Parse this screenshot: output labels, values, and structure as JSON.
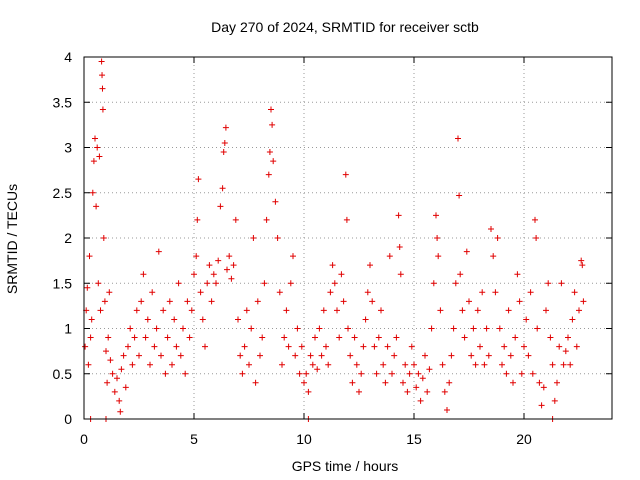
{
  "chart_data": {
    "type": "scatter",
    "title": "Day 270 of 2024, SRMTID for receiver sctb",
    "xlabel": "GPS time / hours",
    "ylabel": "SRMTID / TECUs",
    "xlim": [
      0,
      24
    ],
    "ylim": [
      0,
      4
    ],
    "x_ticks": [
      0,
      5,
      10,
      15,
      20
    ],
    "y_ticks": [
      0,
      0.5,
      1,
      1.5,
      2,
      2.5,
      3,
      3.5,
      4
    ],
    "x_tick_labels": [
      "0",
      "5",
      "10",
      "15",
      "20"
    ],
    "y_tick_labels": [
      "0",
      "0.5",
      "1",
      "1.5",
      "2",
      "2.5",
      "3",
      "3.5",
      "4"
    ],
    "grid": true,
    "marker": "+",
    "color": "#e00000",
    "series": [
      {
        "name": "SRMTID",
        "points": [
          [
            0.05,
            0.8
          ],
          [
            0.1,
            1.2
          ],
          [
            0.15,
            1.45
          ],
          [
            0.2,
            0.6
          ],
          [
            0.25,
            1.8
          ],
          [
            0.3,
            0.9
          ],
          [
            0.35,
            1.1
          ],
          [
            0.4,
            2.5
          ],
          [
            0.45,
            2.85
          ],
          [
            0.5,
            3.1
          ],
          [
            0.55,
            2.35
          ],
          [
            0.6,
            3.0
          ],
          [
            0.65,
            1.5
          ],
          [
            0.7,
            2.9
          ],
          [
            0.75,
            1.2
          ],
          [
            0.8,
            3.95
          ],
          [
            0.82,
            3.8
          ],
          [
            0.84,
            3.65
          ],
          [
            0.86,
            3.42
          ],
          [
            0.9,
            2.0
          ],
          [
            0.95,
            1.3
          ],
          [
            1.0,
            0.75
          ],
          [
            1.05,
            0.4
          ],
          [
            1.1,
            0.9
          ],
          [
            1.15,
            1.4
          ],
          [
            1.2,
            0.65
          ],
          [
            1.3,
            0.5
          ],
          [
            1.4,
            0.3
          ],
          [
            1.5,
            0.45
          ],
          [
            1.6,
            0.2
          ],
          [
            1.65,
            0.08
          ],
          [
            1.7,
            0.55
          ],
          [
            1.8,
            0.7
          ],
          [
            1.9,
            0.35
          ],
          [
            2.0,
            0.8
          ],
          [
            2.1,
            1.0
          ],
          [
            2.2,
            0.6
          ],
          [
            2.3,
            0.9
          ],
          [
            2.4,
            1.2
          ],
          [
            2.5,
            0.7
          ],
          [
            2.6,
            1.3
          ],
          [
            2.7,
            1.6
          ],
          [
            2.8,
            0.9
          ],
          [
            2.9,
            1.1
          ],
          [
            3.0,
            0.6
          ],
          [
            3.1,
            1.4
          ],
          [
            3.2,
            0.8
          ],
          [
            3.3,
            1.0
          ],
          [
            3.4,
            1.85
          ],
          [
            3.5,
            0.7
          ],
          [
            3.6,
            1.2
          ],
          [
            3.7,
            0.5
          ],
          [
            3.8,
            0.9
          ],
          [
            3.9,
            1.3
          ],
          [
            4.0,
            0.6
          ],
          [
            4.1,
            1.1
          ],
          [
            4.2,
            0.8
          ],
          [
            4.3,
            1.5
          ],
          [
            4.4,
            0.7
          ],
          [
            4.5,
            1.0
          ],
          [
            4.6,
            0.5
          ],
          [
            4.7,
            1.3
          ],
          [
            4.8,
            0.9
          ],
          [
            4.9,
            1.2
          ],
          [
            5.0,
            1.6
          ],
          [
            5.1,
            1.8
          ],
          [
            5.15,
            2.2
          ],
          [
            5.2,
            2.65
          ],
          [
            5.3,
            1.4
          ],
          [
            5.4,
            1.1
          ],
          [
            5.5,
            0.8
          ],
          [
            5.6,
            1.5
          ],
          [
            5.7,
            1.7
          ],
          [
            5.8,
            1.3
          ],
          [
            5.9,
            1.6
          ],
          [
            6.0,
            1.5
          ],
          [
            6.1,
            1.75
          ],
          [
            6.2,
            2.35
          ],
          [
            6.3,
            2.55
          ],
          [
            6.35,
            2.95
          ],
          [
            6.4,
            3.05
          ],
          [
            6.45,
            3.22
          ],
          [
            6.5,
            1.65
          ],
          [
            6.6,
            1.8
          ],
          [
            6.7,
            1.55
          ],
          [
            6.8,
            1.7
          ],
          [
            6.9,
            2.2
          ],
          [
            7.0,
            1.1
          ],
          [
            7.1,
            0.7
          ],
          [
            7.2,
            0.5
          ],
          [
            7.3,
            0.8
          ],
          [
            7.4,
            1.2
          ],
          [
            7.5,
            0.6
          ],
          [
            7.6,
            1.0
          ],
          [
            7.7,
            2.0
          ],
          [
            7.8,
            0.4
          ],
          [
            7.9,
            1.3
          ],
          [
            8.0,
            0.7
          ],
          [
            8.1,
            0.9
          ],
          [
            8.2,
            1.5
          ],
          [
            8.3,
            2.2
          ],
          [
            8.4,
            2.7
          ],
          [
            8.45,
            2.95
          ],
          [
            8.5,
            3.42
          ],
          [
            8.55,
            3.25
          ],
          [
            8.6,
            2.85
          ],
          [
            8.7,
            2.4
          ],
          [
            8.8,
            2.0
          ],
          [
            8.9,
            1.4
          ],
          [
            9.0,
            0.6
          ],
          [
            9.1,
            0.9
          ],
          [
            9.2,
            1.2
          ],
          [
            9.3,
            0.8
          ],
          [
            9.4,
            1.5
          ],
          [
            9.5,
            1.8
          ],
          [
            9.6,
            0.7
          ],
          [
            9.7,
            1.0
          ],
          [
            9.8,
            0.5
          ],
          [
            9.9,
            0.8
          ],
          [
            10.0,
            0.4
          ],
          [
            10.1,
            0.5
          ],
          [
            10.2,
            0.3
          ],
          [
            10.3,
            0.7
          ],
          [
            10.4,
            0.6
          ],
          [
            10.5,
            0.9
          ],
          [
            10.6,
            0.55
          ],
          [
            10.7,
            1.0
          ],
          [
            10.8,
            0.7
          ],
          [
            10.9,
            1.2
          ],
          [
            11.0,
            0.8
          ],
          [
            11.1,
            0.6
          ],
          [
            11.2,
            1.4
          ],
          [
            11.3,
            1.7
          ],
          [
            11.4,
            1.5
          ],
          [
            11.5,
            1.2
          ],
          [
            11.6,
            0.9
          ],
          [
            11.7,
            1.6
          ],
          [
            11.8,
            1.3
          ],
          [
            11.9,
            2.7
          ],
          [
            11.95,
            2.2
          ],
          [
            12.0,
            1.0
          ],
          [
            12.1,
            0.7
          ],
          [
            12.2,
            0.4
          ],
          [
            12.3,
            0.9
          ],
          [
            12.4,
            0.6
          ],
          [
            12.5,
            0.3
          ],
          [
            12.6,
            0.5
          ],
          [
            12.7,
            0.8
          ],
          [
            12.8,
            1.1
          ],
          [
            12.9,
            1.4
          ],
          [
            13.0,
            1.7
          ],
          [
            13.1,
            1.3
          ],
          [
            13.2,
            0.8
          ],
          [
            13.3,
            0.5
          ],
          [
            13.4,
            0.9
          ],
          [
            13.5,
            1.2
          ],
          [
            13.6,
            0.6
          ],
          [
            13.7,
            0.4
          ],
          [
            13.8,
            0.8
          ],
          [
            13.9,
            1.8
          ],
          [
            14.0,
            0.5
          ],
          [
            14.1,
            0.7
          ],
          [
            14.2,
            0.9
          ],
          [
            14.3,
            2.25
          ],
          [
            14.35,
            1.9
          ],
          [
            14.4,
            1.6
          ],
          [
            14.5,
            0.4
          ],
          [
            14.6,
            0.6
          ],
          [
            14.7,
            0.3
          ],
          [
            14.8,
            0.5
          ],
          [
            14.9,
            0.8
          ],
          [
            15.0,
            0.6
          ],
          [
            15.1,
            0.35
          ],
          [
            15.2,
            0.5
          ],
          [
            15.3,
            0.2
          ],
          [
            15.4,
            0.45
          ],
          [
            15.5,
            0.7
          ],
          [
            15.6,
            0.3
          ],
          [
            15.7,
            0.55
          ],
          [
            15.8,
            1.0
          ],
          [
            15.9,
            1.5
          ],
          [
            16.0,
            2.25
          ],
          [
            16.05,
            2.0
          ],
          [
            16.1,
            1.8
          ],
          [
            16.2,
            1.2
          ],
          [
            16.3,
            0.6
          ],
          [
            16.4,
            0.3
          ],
          [
            16.5,
            0.1
          ],
          [
            16.6,
            0.4
          ],
          [
            16.7,
            0.7
          ],
          [
            16.8,
            1.0
          ],
          [
            16.9,
            1.5
          ],
          [
            17.0,
            3.1
          ],
          [
            17.05,
            2.47
          ],
          [
            17.1,
            1.6
          ],
          [
            17.2,
            1.2
          ],
          [
            17.3,
            0.9
          ],
          [
            17.4,
            1.85
          ],
          [
            17.5,
            1.3
          ],
          [
            17.6,
            0.7
          ],
          [
            17.7,
            1.0
          ],
          [
            17.8,
            0.6
          ],
          [
            17.9,
            1.2
          ],
          [
            18.0,
            0.8
          ],
          [
            18.1,
            1.4
          ],
          [
            18.2,
            0.6
          ],
          [
            18.3,
            1.0
          ],
          [
            18.4,
            0.7
          ],
          [
            18.5,
            2.1
          ],
          [
            18.6,
            1.8
          ],
          [
            18.7,
            1.4
          ],
          [
            18.8,
            2.0
          ],
          [
            18.9,
            1.0
          ],
          [
            19.0,
            0.6
          ],
          [
            19.1,
            0.8
          ],
          [
            19.2,
            0.5
          ],
          [
            19.3,
            1.2
          ],
          [
            19.4,
            0.7
          ],
          [
            19.5,
            0.4
          ],
          [
            19.6,
            0.9
          ],
          [
            19.7,
            1.6
          ],
          [
            19.8,
            1.3
          ],
          [
            19.9,
            0.5
          ],
          [
            20.0,
            0.8
          ],
          [
            20.1,
            1.1
          ],
          [
            20.2,
            0.7
          ],
          [
            20.3,
            1.4
          ],
          [
            20.4,
            0.5
          ],
          [
            20.5,
            2.2
          ],
          [
            20.55,
            2.0
          ],
          [
            20.6,
            1.0
          ],
          [
            20.7,
            0.4
          ],
          [
            20.8,
            0.15
          ],
          [
            20.9,
            0.35
          ],
          [
            21.0,
            1.2
          ],
          [
            21.1,
            1.5
          ],
          [
            21.2,
            0.9
          ],
          [
            21.3,
            0.6
          ],
          [
            21.4,
            0.2
          ],
          [
            21.5,
            0.4
          ],
          [
            21.6,
            0.8
          ],
          [
            21.7,
            1.5
          ],
          [
            21.8,
            0.6
          ],
          [
            21.9,
            0.75
          ],
          [
            22.0,
            0.9
          ],
          [
            22.1,
            0.6
          ],
          [
            22.2,
            1.1
          ],
          [
            22.3,
            1.4
          ],
          [
            22.4,
            0.8
          ],
          [
            22.5,
            1.2
          ],
          [
            22.6,
            1.75
          ],
          [
            22.65,
            1.7
          ],
          [
            22.7,
            1.3
          ],
          [
            0.3,
            0.0
          ],
          [
            1.0,
            0.0
          ],
          [
            10.2,
            0.0
          ],
          [
            21.3,
            0.0
          ]
        ]
      }
    ]
  }
}
